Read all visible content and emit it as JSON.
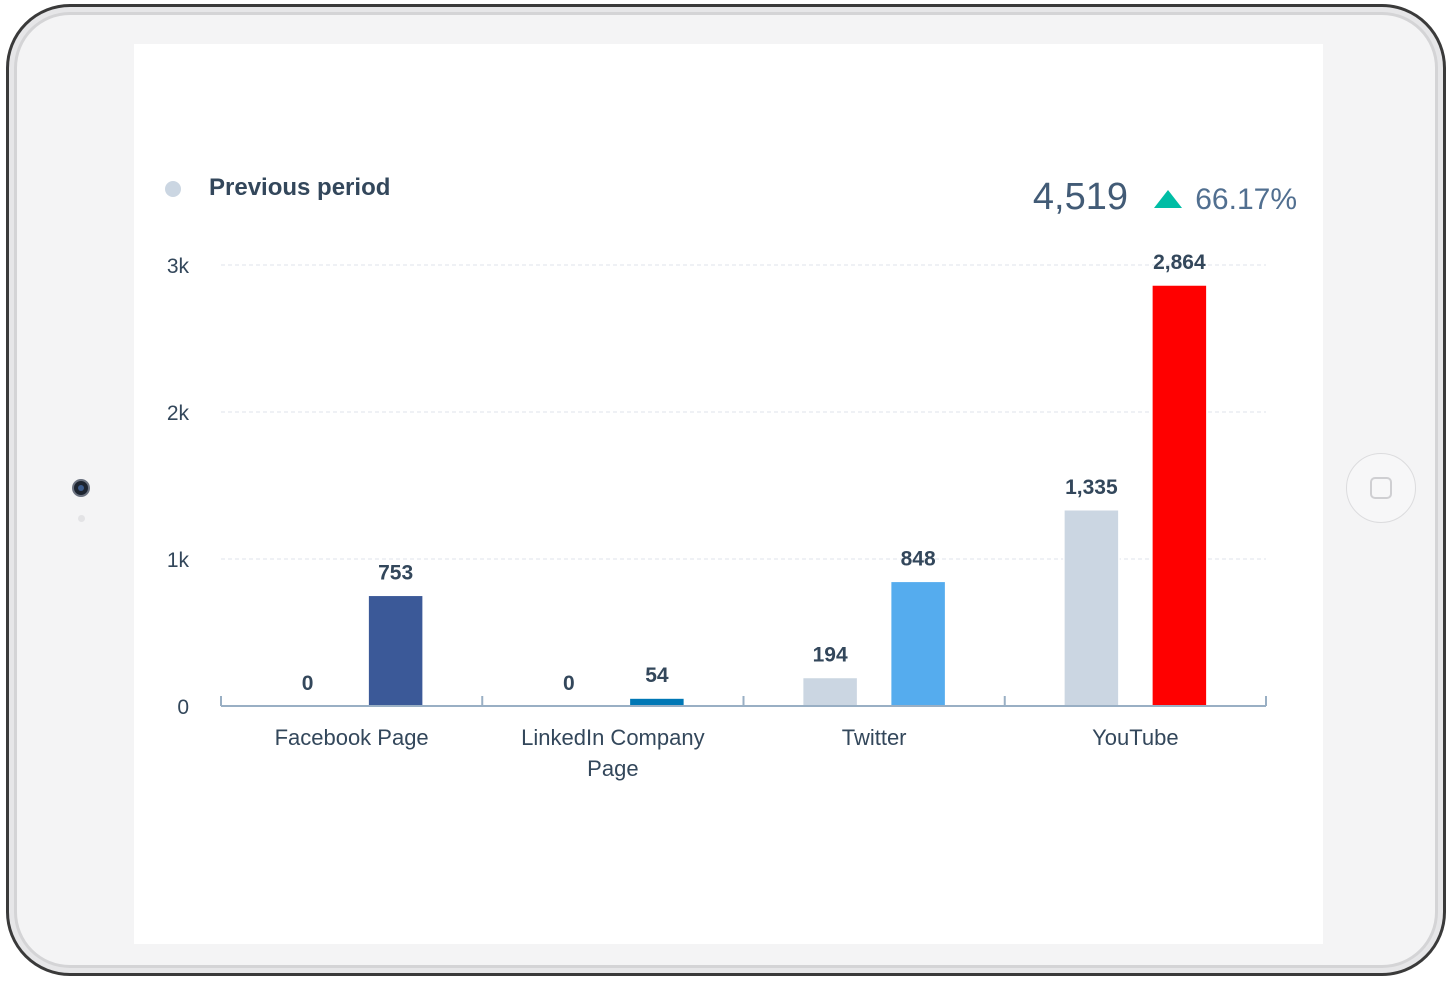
{
  "legend": {
    "label": "Previous period",
    "marker_color": "#cbd6e2"
  },
  "summary": {
    "total": "4,519",
    "change": "66.17%",
    "trend_icon": "up-triangle-icon",
    "trend_color": "#00bda5"
  },
  "chart_data": {
    "type": "bar",
    "categories": [
      "Facebook Page",
      "LinkedIn Company Page",
      "Twitter",
      "YouTube"
    ],
    "category_labels": [
      [
        "Facebook Page"
      ],
      [
        "LinkedIn Company",
        "Page"
      ],
      [
        "Twitter"
      ],
      [
        "YouTube"
      ]
    ],
    "series": [
      {
        "name": "Previous period",
        "values": [
          0,
          0,
          194,
          1335
        ],
        "labels": [
          "0",
          "0",
          "194",
          "1,335"
        ],
        "colors": [
          "#cbd6e2",
          "#cbd6e2",
          "#cbd6e2",
          "#cbd6e2"
        ]
      },
      {
        "values": [
          753,
          54,
          848,
          2864
        ],
        "labels": [
          "753",
          "54",
          "848",
          "2,864"
        ],
        "colors": [
          "#3b5998",
          "#0077b5",
          "#55acee",
          "#ff0000"
        ]
      }
    ],
    "y_ticks": [
      0,
      1000,
      2000,
      3000
    ],
    "y_tick_labels": [
      "0",
      "1k",
      "2k",
      "3k"
    ],
    "ylim": [
      0,
      3000
    ],
    "grid": true,
    "legend_position": "top-left"
  }
}
